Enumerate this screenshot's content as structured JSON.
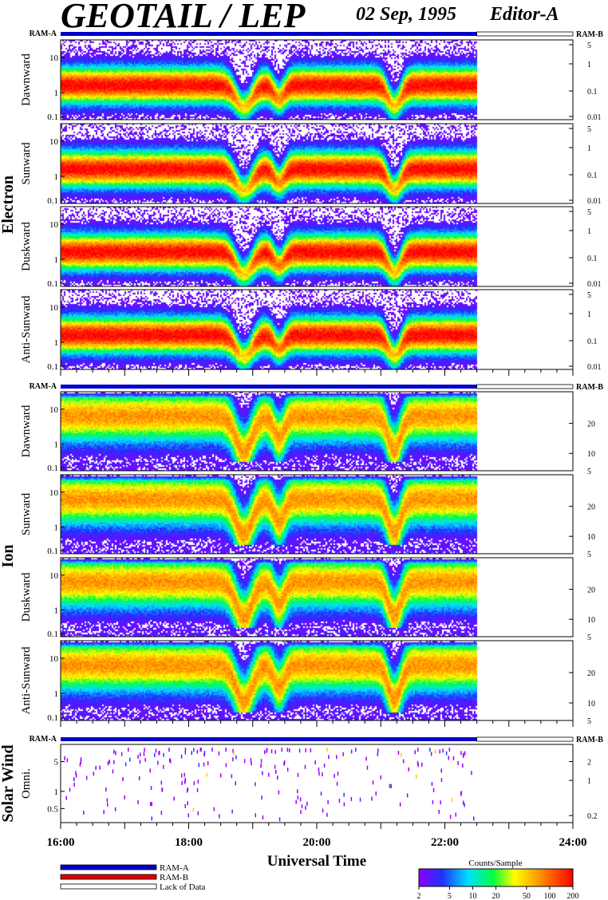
{
  "header": {
    "title": "GEOTAIL / LEP",
    "date": "02 Sep, 1995",
    "editor": "Editor-A"
  },
  "chart_data": {
    "type": "heatmap",
    "xlabel": "Universal Time",
    "x_ticks": [
      "16:00",
      "18:00",
      "20:00",
      "22:00",
      "24:00"
    ],
    "x_range_hours": [
      16,
      24
    ],
    "data_end_hour": 22.5,
    "ram_label_left": "RAM-A",
    "ram_label_right": "RAM-B",
    "groups": [
      {
        "name": "Electron",
        "panels": [
          {
            "label": "Dawnward",
            "left_ticks": [
              "10",
              "1",
              "0.1"
            ],
            "right_ticks": [
              "5",
              "1",
              "0.1",
              "0.01"
            ]
          },
          {
            "label": "Sunward",
            "left_ticks": [
              "10",
              "1",
              "0.1"
            ],
            "right_ticks": [
              "5",
              "1",
              "0.1",
              "0.01"
            ]
          },
          {
            "label": "Duskward",
            "left_ticks": [
              "10",
              "1",
              "0.1"
            ],
            "right_ticks": [
              "5",
              "1",
              "0.1",
              "0.01"
            ]
          },
          {
            "label": "Anti-Sunward",
            "left_ticks": [
              "10",
              "1",
              "0.1"
            ],
            "right_ticks": [
              "5",
              "1",
              "0.1",
              "0.01"
            ]
          }
        ]
      },
      {
        "name": "Ion",
        "panels": [
          {
            "label": "Dawnward",
            "left_ticks": [
              "10",
              "1",
              "0.1"
            ],
            "right_ticks": [
              "20",
              "10",
              "5"
            ]
          },
          {
            "label": "Sunward",
            "left_ticks": [
              "10",
              "1",
              "0.1"
            ],
            "right_ticks": [
              "20",
              "10",
              "5"
            ]
          },
          {
            "label": "Duskward",
            "left_ticks": [
              "10",
              "1",
              "0.1"
            ],
            "right_ticks": [
              "20",
              "10",
              "5"
            ]
          },
          {
            "label": "Anti-Sunward",
            "left_ticks": [
              "10",
              "1",
              "0.1"
            ],
            "right_ticks": [
              "20",
              "10",
              "5"
            ]
          }
        ]
      },
      {
        "name": "Solar Wind",
        "panels": [
          {
            "label": "Omni.",
            "left_ticks": [
              "5",
              "1",
              "0.5"
            ],
            "right_ticks": [
              "2",
              "1",
              "0.2"
            ]
          }
        ]
      }
    ],
    "legend": {
      "items": [
        {
          "label": "RAM-A",
          "color": "#0000cc"
        },
        {
          "label": "RAM-B",
          "color": "#dd0000"
        },
        {
          "label": "Lack of Data",
          "color": "#ffffff"
        }
      ]
    },
    "colorbar": {
      "title": "Counts/Sample",
      "ticks": [
        "2",
        "5",
        "10",
        "20",
        "50",
        "100",
        "200"
      ],
      "scale": "log",
      "range": [
        2,
        200
      ]
    }
  }
}
